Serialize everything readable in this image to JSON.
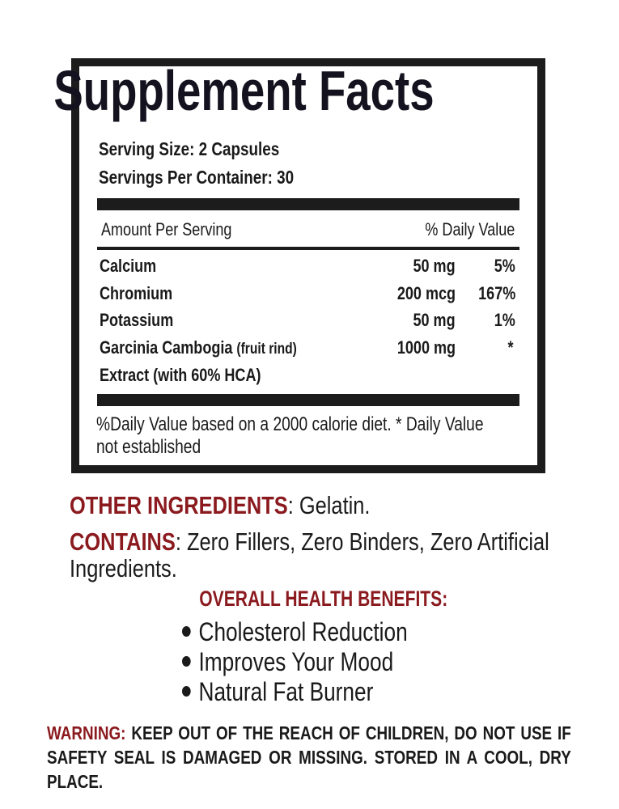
{
  "label": {
    "title": "Supplement Facts",
    "serving_size": "Serving Size: 2 Capsules",
    "servings_per_container": "Servings Per Container: 30",
    "header_amount": "Amount Per Serving",
    "header_dv": "% Daily Value",
    "rows": [
      {
        "name": "Calcium",
        "amount": "50 mg",
        "dv": "5%"
      },
      {
        "name": "Chromium",
        "amount": "200 mcg",
        "dv": "167%"
      },
      {
        "name": "Potassium",
        "amount": "50 mg",
        "dv": "1%"
      },
      {
        "name": "Garcinia Cambogia ",
        "name_note": "(fruit rind)",
        "amount": "1000 mg",
        "dv": "*",
        "name_line2": "Extract (with 60% HCA)"
      }
    ],
    "footnote_line1": "%Daily Value based on a 2000 calorie diet. * Daily Value",
    "footnote_line2": "not established"
  },
  "other_ingredients": {
    "label": "OTHER INGREDIENTS",
    "value": ": Gelatin."
  },
  "contains": {
    "label": "CONTAINS",
    "value_line1": ":  Zero Fillers, Zero Binders, Zero Artificial",
    "value_line2": "Ingredients."
  },
  "benefits": {
    "title": "OVERALL HEALTH BENEFITS:",
    "items": [
      "Cholesterol Reduction",
      "Improves Your Mood",
      "Natural Fat Burner"
    ]
  },
  "warning": {
    "label": "WARNING:",
    "text": " KEEP OUT OF THE REACH OF CHILDREN, DO NOT USE IF SAFETY SEAL IS DAMAGED OR MISSING. STORED IN A COOL, DRY PLACE."
  },
  "colors": {
    "accent_red": "#8b1a1f",
    "border": "#1c1c1c"
  }
}
